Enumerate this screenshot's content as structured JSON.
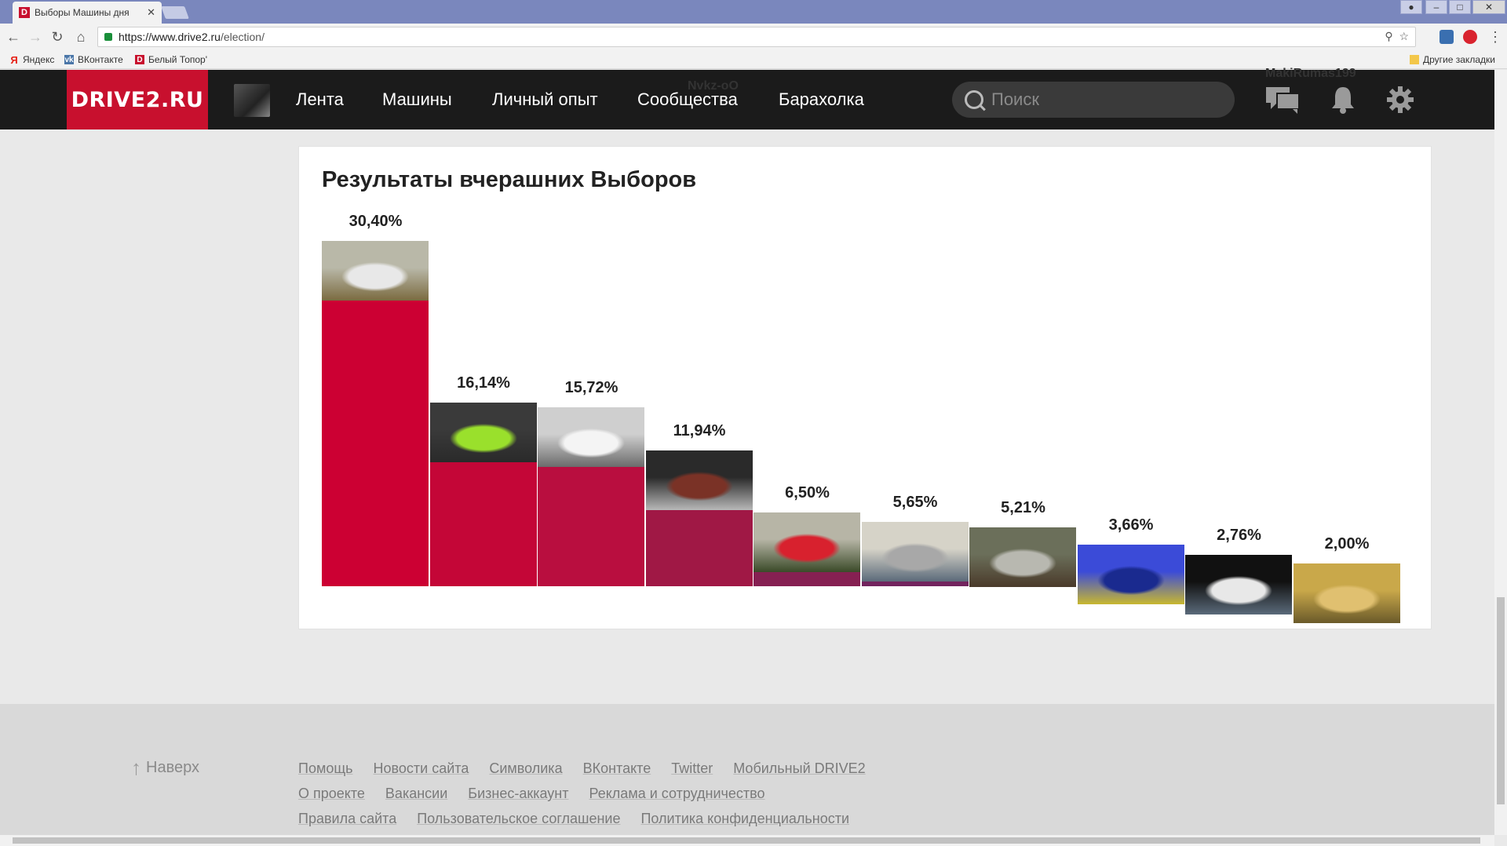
{
  "browser": {
    "tab_title": "Выборы Машины дня",
    "tab_favicon": "D",
    "tab_close": "✕",
    "url_prefix": "https://www.drive2.ru",
    "url_path": "/election/",
    "bookmarks": [
      {
        "label": "Яндекс",
        "icon": "yandex-icon",
        "color": "#e62117",
        "glyph": "Я"
      },
      {
        "label": "ВКонтакте",
        "icon": "vk-icon",
        "color": "#4a76a8",
        "glyph": "vk"
      },
      {
        "label": "Белый Топор'",
        "icon": "drive2-icon",
        "color": "#c8102e",
        "glyph": "D"
      }
    ],
    "other_bookmarks": "Другие закладки"
  },
  "header": {
    "logo": "DRIVE2.RU",
    "nav": [
      "Лента",
      "Машины",
      "Личный опыт",
      "Сообщества",
      "Барахолка"
    ],
    "search_placeholder": "Поиск",
    "ghost_text_1": "Nvkz-oO",
    "ghost_text_2": "MakiRumas199",
    "icons": [
      "messages-icon",
      "bell-icon",
      "gear-icon"
    ]
  },
  "main": {
    "title": "Результаты вчерашних Выборов"
  },
  "chart_data": {
    "type": "bar",
    "title": "Результаты вчерашних Выборов",
    "values": [
      30.4,
      16.14,
      15.72,
      11.94,
      6.5,
      5.65,
      5.21,
      3.66,
      2.76,
      2.0
    ],
    "labels": [
      "30,40%",
      "16,14%",
      "15,72%",
      "11,94%",
      "6,50%",
      "5,65%",
      "5,21%",
      "3,66%",
      "2,76%",
      "2,00%"
    ],
    "colors": [
      "#cc0033",
      "#c40637",
      "#b90e3f",
      "#a01845",
      "#862052",
      "#73245e",
      "#612866",
      "#3f3470",
      "#2e3d7c",
      "#254b8f"
    ],
    "photo_colors": [
      [
        "#b9b8a8",
        "#e8e8e8",
        "#7b6b40"
      ],
      [
        "#3a3a3a",
        "#9ae02c",
        "#2a2a2a"
      ],
      [
        "#cfcfcf",
        "#f4f4f4",
        "#6b6b6b"
      ],
      [
        "#2a2a2a",
        "#7a3226",
        "#b8b8b8"
      ],
      [
        "#b7b5a6",
        "#d8212e",
        "#3a4a28"
      ],
      [
        "#d6d3c8",
        "#a8a8a8",
        "#5b6a7a"
      ],
      [
        "#6b6f5a",
        "#b8b8b0",
        "#4a3a2a"
      ],
      [
        "#3b4bd8",
        "#1a2a8f",
        "#c8b830"
      ],
      [
        "#111111",
        "#e8e8e8",
        "#5a6a7a"
      ],
      [
        "#c9a84a",
        "#e0c070",
        "#6a5a2a"
      ]
    ],
    "ylim": [
      0,
      30.4
    ],
    "legend": "none",
    "grid": false
  },
  "footer": {
    "to_top": "Наверх",
    "row1": [
      "Помощь",
      "Новости сайта",
      "Символика",
      "ВКонтакте",
      "Twitter",
      "Мобильный DRIVE2"
    ],
    "row2": [
      "О проекте",
      "Вакансии",
      "Бизнес-аккаунт",
      "Реклама и сотрудничество"
    ],
    "row3": [
      "Правила сайта",
      "Пользовательское соглашение",
      "Политика конфиденциальности"
    ]
  }
}
